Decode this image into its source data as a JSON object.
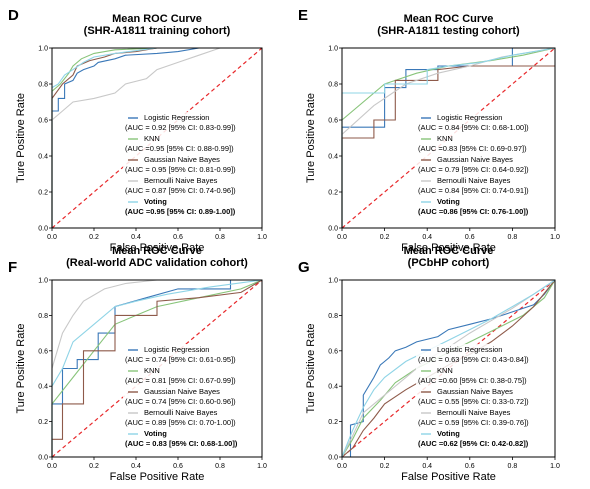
{
  "chart_data": [
    {
      "type": "line",
      "panel_label": "D",
      "title": "Mean ROC Curve",
      "subtitle": "(SHR-A1811 training cohort)",
      "xlabel": "False Positive Rate",
      "ylabel": "Ture Positive Rate",
      "xlim": [
        0,
        1
      ],
      "ylim": [
        0,
        1
      ],
      "xticks": [
        "0.0",
        "0.2",
        "0.4",
        "0.6",
        "0.8",
        "1.0"
      ],
      "yticks": [
        "0.0",
        "0.2",
        "0.4",
        "0.6",
        "0.8",
        "1.0"
      ],
      "legend_position": "lower-right",
      "series": [
        {
          "name": "Logistic Regression",
          "auc_text": "(AUC = 0.92 [95% CI: 0.83-0.99])",
          "color": "#3a78b8",
          "x": [
            0,
            0,
            0.03,
            0.03,
            0.06,
            0.06,
            0.1,
            0.12,
            0.15,
            0.2,
            0.22,
            0.3,
            0.35,
            0.5,
            0.6,
            0.7,
            1.0
          ],
          "y": [
            0,
            0.65,
            0.65,
            0.72,
            0.72,
            0.8,
            0.82,
            0.86,
            0.88,
            0.9,
            0.92,
            0.94,
            0.96,
            0.97,
            0.98,
            1.0,
            1.0
          ]
        },
        {
          "name": "KNN",
          "auc_text": "(AUC =0.95 [95% CI: 0.88-0.99])",
          "color": "#88c47a",
          "x": [
            0,
            0,
            0.04,
            0.08,
            0.1,
            0.14,
            0.2,
            0.3,
            0.5,
            1.0
          ],
          "y": [
            0,
            0.76,
            0.8,
            0.86,
            0.9,
            0.94,
            0.97,
            0.99,
            1.0,
            1.0
          ]
        },
        {
          "name": "Gaussian Naive Bayes",
          "auc_text": "(AUC = 0.95 [95% CI: 0.81-0.99])",
          "color": "#8e5a4a",
          "x": [
            0,
            0,
            0.05,
            0.1,
            0.12,
            0.18,
            0.25,
            0.3,
            0.4,
            0.5,
            1.0
          ],
          "y": [
            0,
            0.72,
            0.8,
            0.85,
            0.9,
            0.93,
            0.95,
            0.97,
            0.98,
            1.0,
            1.0
          ]
        },
        {
          "name": "Bernoulli Naive Bayes",
          "auc_text": "(AUC = 0.87 [95% CI: 0.74-0.96])",
          "color": "#c8c8c8",
          "x": [
            0,
            0,
            0.05,
            0.1,
            0.2,
            0.3,
            0.35,
            0.45,
            0.5,
            0.6,
            0.7,
            0.8,
            1.0
          ],
          "y": [
            0,
            0.6,
            0.65,
            0.7,
            0.72,
            0.75,
            0.8,
            0.83,
            0.88,
            0.92,
            0.96,
            1.0,
            1.0
          ]
        },
        {
          "name": "Voting",
          "auc_text": "(AUC =0.95 [95% CI: 0.89-1.00])",
          "color": "#8fd4e6",
          "bold": true,
          "x": [
            0,
            0,
            0.03,
            0.06,
            0.1,
            0.15,
            0.2,
            0.3,
            0.5,
            1.0
          ],
          "y": [
            0,
            0.78,
            0.8,
            0.85,
            0.88,
            0.92,
            0.95,
            0.97,
            1.0,
            1.0
          ]
        }
      ]
    },
    {
      "type": "line",
      "panel_label": "E",
      "title": "Mean ROC Curve",
      "subtitle": "(SHR-A1811 testing cohort)",
      "xlabel": "False Positive Rate",
      "ylabel": "Ture Positive Rate",
      "xlim": [
        0,
        1
      ],
      "ylim": [
        0,
        1
      ],
      "xticks": [
        "0.0",
        "0.2",
        "0.4",
        "0.6",
        "0.8",
        "1.0"
      ],
      "yticks": [
        "0.0",
        "0.2",
        "0.4",
        "0.6",
        "0.8",
        "1.0"
      ],
      "legend_position": "lower-right",
      "series": [
        {
          "name": "Logistic Regression",
          "auc_text": "(AUC = 0.84 [95% CI: 0.68-1.00])",
          "color": "#3a78b8",
          "x": [
            0,
            0,
            0.2,
            0.2,
            0.3,
            0.3,
            0.45,
            0.45,
            0.7,
            0.8,
            0.8,
            1.0
          ],
          "y": [
            0,
            0.56,
            0.56,
            0.78,
            0.78,
            0.88,
            0.88,
            0.9,
            0.9,
            0.9,
            1.0,
            1.0
          ]
        },
        {
          "name": "KNN",
          "auc_text": "(AUC =0.83 [95% CI: 0.69-0.97])",
          "color": "#88c47a",
          "x": [
            0,
            0,
            0.2,
            0.25,
            0.35,
            0.5,
            0.7,
            0.85,
            1.0
          ],
          "y": [
            0,
            0.6,
            0.8,
            0.82,
            0.86,
            0.9,
            0.93,
            0.96,
            1.0
          ]
        },
        {
          "name": "Gaussian Naive Bayes",
          "auc_text": "(AUC = 0.79 [95% CI: 0.64-0.92])",
          "color": "#8e5a4a",
          "x": [
            0,
            0,
            0.15,
            0.15,
            0.25,
            0.25,
            0.45,
            0.45,
            0.6,
            1.0
          ],
          "y": [
            0,
            0.5,
            0.5,
            0.6,
            0.6,
            0.82,
            0.82,
            0.88,
            0.9,
            0.9
          ]
        },
        {
          "name": "Bernoulli Naive Bayes",
          "auc_text": "(AUC = 0.84 [95% CI: 0.74-0.91])",
          "color": "#c8c8c8",
          "x": [
            0,
            0,
            0.15,
            0.3,
            0.45,
            0.6,
            0.75,
            0.85,
            1.0
          ],
          "y": [
            0,
            0.52,
            0.68,
            0.8,
            0.86,
            0.9,
            0.95,
            0.97,
            1.0
          ]
        },
        {
          "name": "Voting",
          "auc_text": "(AUC =0.86 [95% CI: 0.76-1.00])",
          "color": "#8fd4e6",
          "bold": true,
          "x": [
            0,
            0,
            0.2,
            0.2,
            0.4,
            0.4,
            0.5,
            0.65,
            0.8,
            1.0
          ],
          "y": [
            0,
            0.75,
            0.75,
            0.8,
            0.8,
            0.88,
            0.9,
            0.92,
            0.96,
            1.0
          ]
        }
      ]
    },
    {
      "type": "line",
      "panel_label": "F",
      "title": "Mean ROC Curve",
      "subtitle": "(Real-world ADC validation cohort)",
      "xlabel": "False Positive Rate",
      "ylabel": "Ture Positive Rate",
      "xlim": [
        0,
        1
      ],
      "ylim": [
        0,
        1
      ],
      "xticks": [
        "0.0",
        "0.2",
        "0.4",
        "0.6",
        "0.8",
        "1.0"
      ],
      "yticks": [
        "0.0",
        "0.2",
        "0.4",
        "0.6",
        "0.8",
        "1.0"
      ],
      "legend_position": "lower-right",
      "series": [
        {
          "name": "Logistic Regression",
          "auc_text": "(AUC = 0.74 [95% CI: 0.61-0.95])",
          "color": "#3a78b8",
          "x": [
            0,
            0,
            0.05,
            0.05,
            0.12,
            0.12,
            0.22,
            0.22,
            0.3,
            0.3,
            0.45,
            0.6,
            0.85,
            0.85,
            1.0
          ],
          "y": [
            0,
            0.3,
            0.3,
            0.5,
            0.5,
            0.55,
            0.55,
            0.7,
            0.7,
            0.85,
            0.9,
            0.95,
            0.95,
            1.0,
            1.0
          ]
        },
        {
          "name": "KNN",
          "auc_text": "(AUC = 0.81 [95% CI: 0.67-0.99])",
          "color": "#88c47a",
          "x": [
            0,
            0,
            0.1,
            0.2,
            0.3,
            0.4,
            0.5,
            0.7,
            0.9,
            1.0
          ],
          "y": [
            0,
            0.3,
            0.45,
            0.6,
            0.75,
            0.8,
            0.85,
            0.9,
            0.95,
            1.0
          ]
        },
        {
          "name": "Gaussian Naive Bayes",
          "auc_text": "(AUC = 0.74 [95% CI: 0.60-0.96])",
          "color": "#8e5a4a",
          "x": [
            0,
            0,
            0.05,
            0.05,
            0.15,
            0.15,
            0.3,
            0.3,
            0.5,
            0.5,
            0.7,
            0.9,
            1.0
          ],
          "y": [
            0,
            0.1,
            0.1,
            0.3,
            0.3,
            0.6,
            0.6,
            0.8,
            0.8,
            0.88,
            0.9,
            0.93,
            1.0
          ]
        },
        {
          "name": "Bernoulli Naive Bayes",
          "auc_text": "(AUC = 0.89 [95% CI: 0.70-1.00])",
          "color": "#c8c8c8",
          "x": [
            0,
            0,
            0.05,
            0.1,
            0.15,
            0.25,
            0.35,
            0.5,
            1.0
          ],
          "y": [
            0,
            0.5,
            0.7,
            0.8,
            0.88,
            0.95,
            0.98,
            1.0,
            1.0
          ]
        },
        {
          "name": "Voting",
          "auc_text": "(AUC = 0.83 [95% CI: 0.68-1.00])",
          "color": "#8fd4e6",
          "bold": true,
          "x": [
            0,
            0,
            0.05,
            0.1,
            0.2,
            0.3,
            0.4,
            0.55,
            0.75,
            1.0
          ],
          "y": [
            0,
            0.4,
            0.5,
            0.65,
            0.75,
            0.85,
            0.88,
            0.92,
            0.96,
            1.0
          ]
        }
      ]
    },
    {
      "type": "line",
      "panel_label": "G",
      "title": "Mean ROC Curve",
      "subtitle": "(PCbHP cohort)",
      "xlabel": "False Positive Rate",
      "ylabel": "Ture Positive Rate",
      "xlim": [
        0,
        1
      ],
      "ylim": [
        0,
        1
      ],
      "xticks": [
        "0.0",
        "0.2",
        "0.4",
        "0.6",
        "0.8",
        "1.0"
      ],
      "yticks": [
        "0.0",
        "0.2",
        "0.4",
        "0.6",
        "0.8",
        "1.0"
      ],
      "legend_position": "lower-right",
      "series": [
        {
          "name": "Logistic Regression",
          "auc_text": "(AUC = 0.63 [95% CI: 0.43-0.84])",
          "color": "#3a78b8",
          "x": [
            0,
            0.04,
            0.04,
            0.1,
            0.1,
            0.15,
            0.18,
            0.22,
            0.25,
            0.3,
            0.35,
            0.45,
            0.5,
            0.6,
            0.7,
            0.8,
            0.9,
            0.95,
            1.0
          ],
          "y": [
            0,
            0.0,
            0.18,
            0.2,
            0.35,
            0.45,
            0.52,
            0.56,
            0.6,
            0.62,
            0.65,
            0.68,
            0.72,
            0.75,
            0.78,
            0.82,
            0.86,
            0.92,
            1.0
          ]
        },
        {
          "name": "KNN",
          "auc_text": "(AUC =0.60 [95% CI: 0.38-0.75])",
          "color": "#88c47a",
          "x": [
            0,
            0.05,
            0.1,
            0.18,
            0.25,
            0.35,
            0.45,
            0.55,
            0.65,
            0.75,
            0.85,
            0.95,
            1.0
          ],
          "y": [
            0,
            0.1,
            0.22,
            0.32,
            0.42,
            0.5,
            0.56,
            0.62,
            0.68,
            0.74,
            0.8,
            0.9,
            1.0
          ]
        },
        {
          "name": "Gaussian Naive Bayes",
          "auc_text": "(AUC = 0.55 [95% CI: 0.33-0.72])",
          "color": "#8e5a4a",
          "x": [
            0,
            0.05,
            0.1,
            0.15,
            0.2,
            0.3,
            0.4,
            0.5,
            0.6,
            0.7,
            0.8,
            0.9,
            1.0
          ],
          "y": [
            0,
            0.05,
            0.15,
            0.22,
            0.3,
            0.38,
            0.45,
            0.52,
            0.58,
            0.65,
            0.74,
            0.85,
            1.0
          ]
        },
        {
          "name": "Bernoulli Naive Bayes",
          "auc_text": "(AUC = 0.59 [95% CI: 0.39-0.76])",
          "color": "#c8c8c8",
          "x": [
            0,
            0.05,
            0.1,
            0.2,
            0.3,
            0.4,
            0.5,
            0.6,
            0.7,
            0.8,
            0.9,
            1.0
          ],
          "y": [
            0,
            0.12,
            0.25,
            0.35,
            0.45,
            0.55,
            0.62,
            0.7,
            0.77,
            0.84,
            0.92,
            1.0
          ]
        },
        {
          "name": "Voting",
          "auc_text": "(AUC =0.62 [95% CI: 0.42-0.82])",
          "color": "#8fd4e6",
          "bold": true,
          "x": [
            0,
            0.05,
            0.1,
            0.15,
            0.2,
            0.3,
            0.4,
            0.5,
            0.6,
            0.7,
            0.8,
            0.9,
            1.0
          ],
          "y": [
            0,
            0.15,
            0.28,
            0.38,
            0.45,
            0.54,
            0.6,
            0.66,
            0.72,
            0.78,
            0.85,
            0.92,
            1.0
          ]
        }
      ]
    }
  ]
}
